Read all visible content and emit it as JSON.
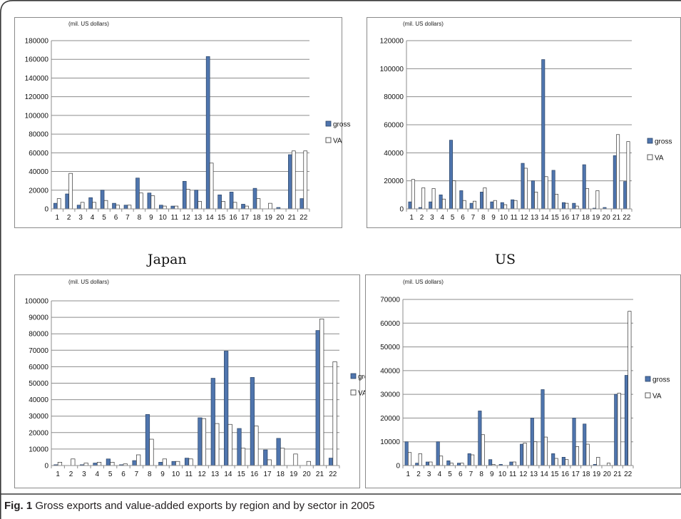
{
  "figure": {
    "caption_label": "Fig. 1",
    "caption_text": "Gross exports and value-added exports by region and by sector in 2005"
  },
  "colors": {
    "gross": "#4f75ae",
    "gross_edge": "#2b4466",
    "va": "#ffffff",
    "va_edge": "#333333",
    "grid": "#8c8c8c"
  },
  "region_labels": [
    "Japan",
    "US"
  ],
  "chart_data": [
    {
      "type": "bar",
      "unit_label": "(mil. US dollars)",
      "region": "Japan",
      "categories": [
        "1",
        "2",
        "3",
        "4",
        "5",
        "6",
        "7",
        "8",
        "9",
        "10",
        "11",
        "12",
        "13",
        "14",
        "15",
        "16",
        "17",
        "18",
        "19",
        "20",
        "21",
        "22"
      ],
      "series": [
        {
          "name": "gross",
          "values": [
            6000,
            16000,
            4000,
            12000,
            20000,
            6000,
            4000,
            33000,
            17000,
            4000,
            3000,
            29500,
            20000,
            163000,
            15000,
            18000,
            5000,
            22000,
            0,
            1500,
            58000,
            11000
          ]
        },
        {
          "name": "VA",
          "values": [
            11000,
            38000,
            7000,
            7000,
            9000,
            4000,
            4000,
            17000,
            14000,
            3000,
            3000,
            21000,
            8000,
            49000,
            8000,
            7000,
            3000,
            11000,
            6000,
            0,
            62000,
            62000
          ]
        }
      ],
      "ylim": [
        0,
        180000
      ],
      "yticks": [
        0,
        20000,
        40000,
        60000,
        80000,
        100000,
        120000,
        140000,
        160000,
        180000
      ],
      "grid": true,
      "legend": "right"
    },
    {
      "type": "bar",
      "unit_label": "(mil. US dollars)",
      "region": "US",
      "categories": [
        "1",
        "2",
        "3",
        "4",
        "5",
        "6",
        "7",
        "8",
        "9",
        "10",
        "11",
        "12",
        "13",
        "14",
        "15",
        "16",
        "17",
        "18",
        "19",
        "20",
        "21",
        "22"
      ],
      "series": [
        {
          "name": "gross",
          "values": [
            5000,
            1000,
            5000,
            10000,
            49000,
            13000,
            4000,
            12000,
            5000,
            4500,
            6500,
            32500,
            20000,
            106500,
            27500,
            4500,
            4000,
            31500,
            500,
            1000,
            38000,
            19500
          ]
        },
        {
          "name": "VA",
          "values": [
            21000,
            15000,
            14500,
            7000,
            20000,
            6000,
            5500,
            15000,
            6000,
            3000,
            6000,
            29000,
            12000,
            23000,
            10500,
            4000,
            2000,
            14500,
            13000,
            0,
            53000,
            48000
          ]
        }
      ],
      "ylim": [
        0,
        120000
      ],
      "yticks": [
        0,
        20000,
        40000,
        60000,
        80000,
        100000,
        120000
      ],
      "grid": true,
      "legend": "right"
    },
    {
      "type": "bar",
      "unit_label": "(mil. US dollars)",
      "region": "",
      "categories": [
        "1",
        "2",
        "3",
        "4",
        "5",
        "6",
        "7",
        "8",
        "9",
        "10",
        "11",
        "12",
        "13",
        "14",
        "15",
        "16",
        "17",
        "18",
        "19",
        "20",
        "21",
        "22"
      ],
      "series": [
        {
          "name": "gross",
          "values": [
            500,
            0,
            500,
            1500,
            4000,
            500,
            3000,
            31000,
            2000,
            2500,
            4500,
            29000,
            53000,
            69500,
            22500,
            53500,
            9500,
            16500,
            0,
            0,
            82000,
            4500
          ]
        },
        {
          "name": "VA",
          "values": [
            2000,
            4000,
            1500,
            2000,
            2000,
            1000,
            6500,
            16000,
            4000,
            2500,
            4000,
            28500,
            25500,
            25000,
            10500,
            24000,
            3500,
            10500,
            7000,
            2500,
            89000,
            63000
          ]
        }
      ],
      "ylim": [
        0,
        100000
      ],
      "yticks": [
        0,
        10000,
        20000,
        30000,
        40000,
        50000,
        60000,
        70000,
        80000,
        90000,
        100000
      ],
      "grid": true,
      "legend": "right"
    },
    {
      "type": "bar",
      "unit_label": "(mil. US dollars)",
      "region": "",
      "categories": [
        "1",
        "2",
        "3",
        "4",
        "5",
        "6",
        "7",
        "8",
        "9",
        "10",
        "11",
        "12",
        "13",
        "14",
        "15",
        "16",
        "17",
        "18",
        "19",
        "20",
        "21",
        "22"
      ],
      "series": [
        {
          "name": "gross",
          "values": [
            10000,
            1000,
            1500,
            10000,
            2000,
            1000,
            5000,
            23000,
            2500,
            500,
            1500,
            9000,
            20000,
            32000,
            5000,
            3500,
            20000,
            17500,
            500,
            0,
            30000,
            38000
          ]
        },
        {
          "name": "VA",
          "values": [
            5500,
            5000,
            1500,
            4000,
            1000,
            1000,
            4500,
            13000,
            500,
            0,
            1500,
            9500,
            10000,
            12000,
            3000,
            2500,
            8000,
            9000,
            3500,
            1000,
            30500,
            65000
          ]
        }
      ],
      "ylim": [
        0,
        70000
      ],
      "yticks": [
        0,
        10000,
        20000,
        30000,
        40000,
        50000,
        60000,
        70000
      ],
      "grid": true,
      "legend": "right"
    }
  ]
}
